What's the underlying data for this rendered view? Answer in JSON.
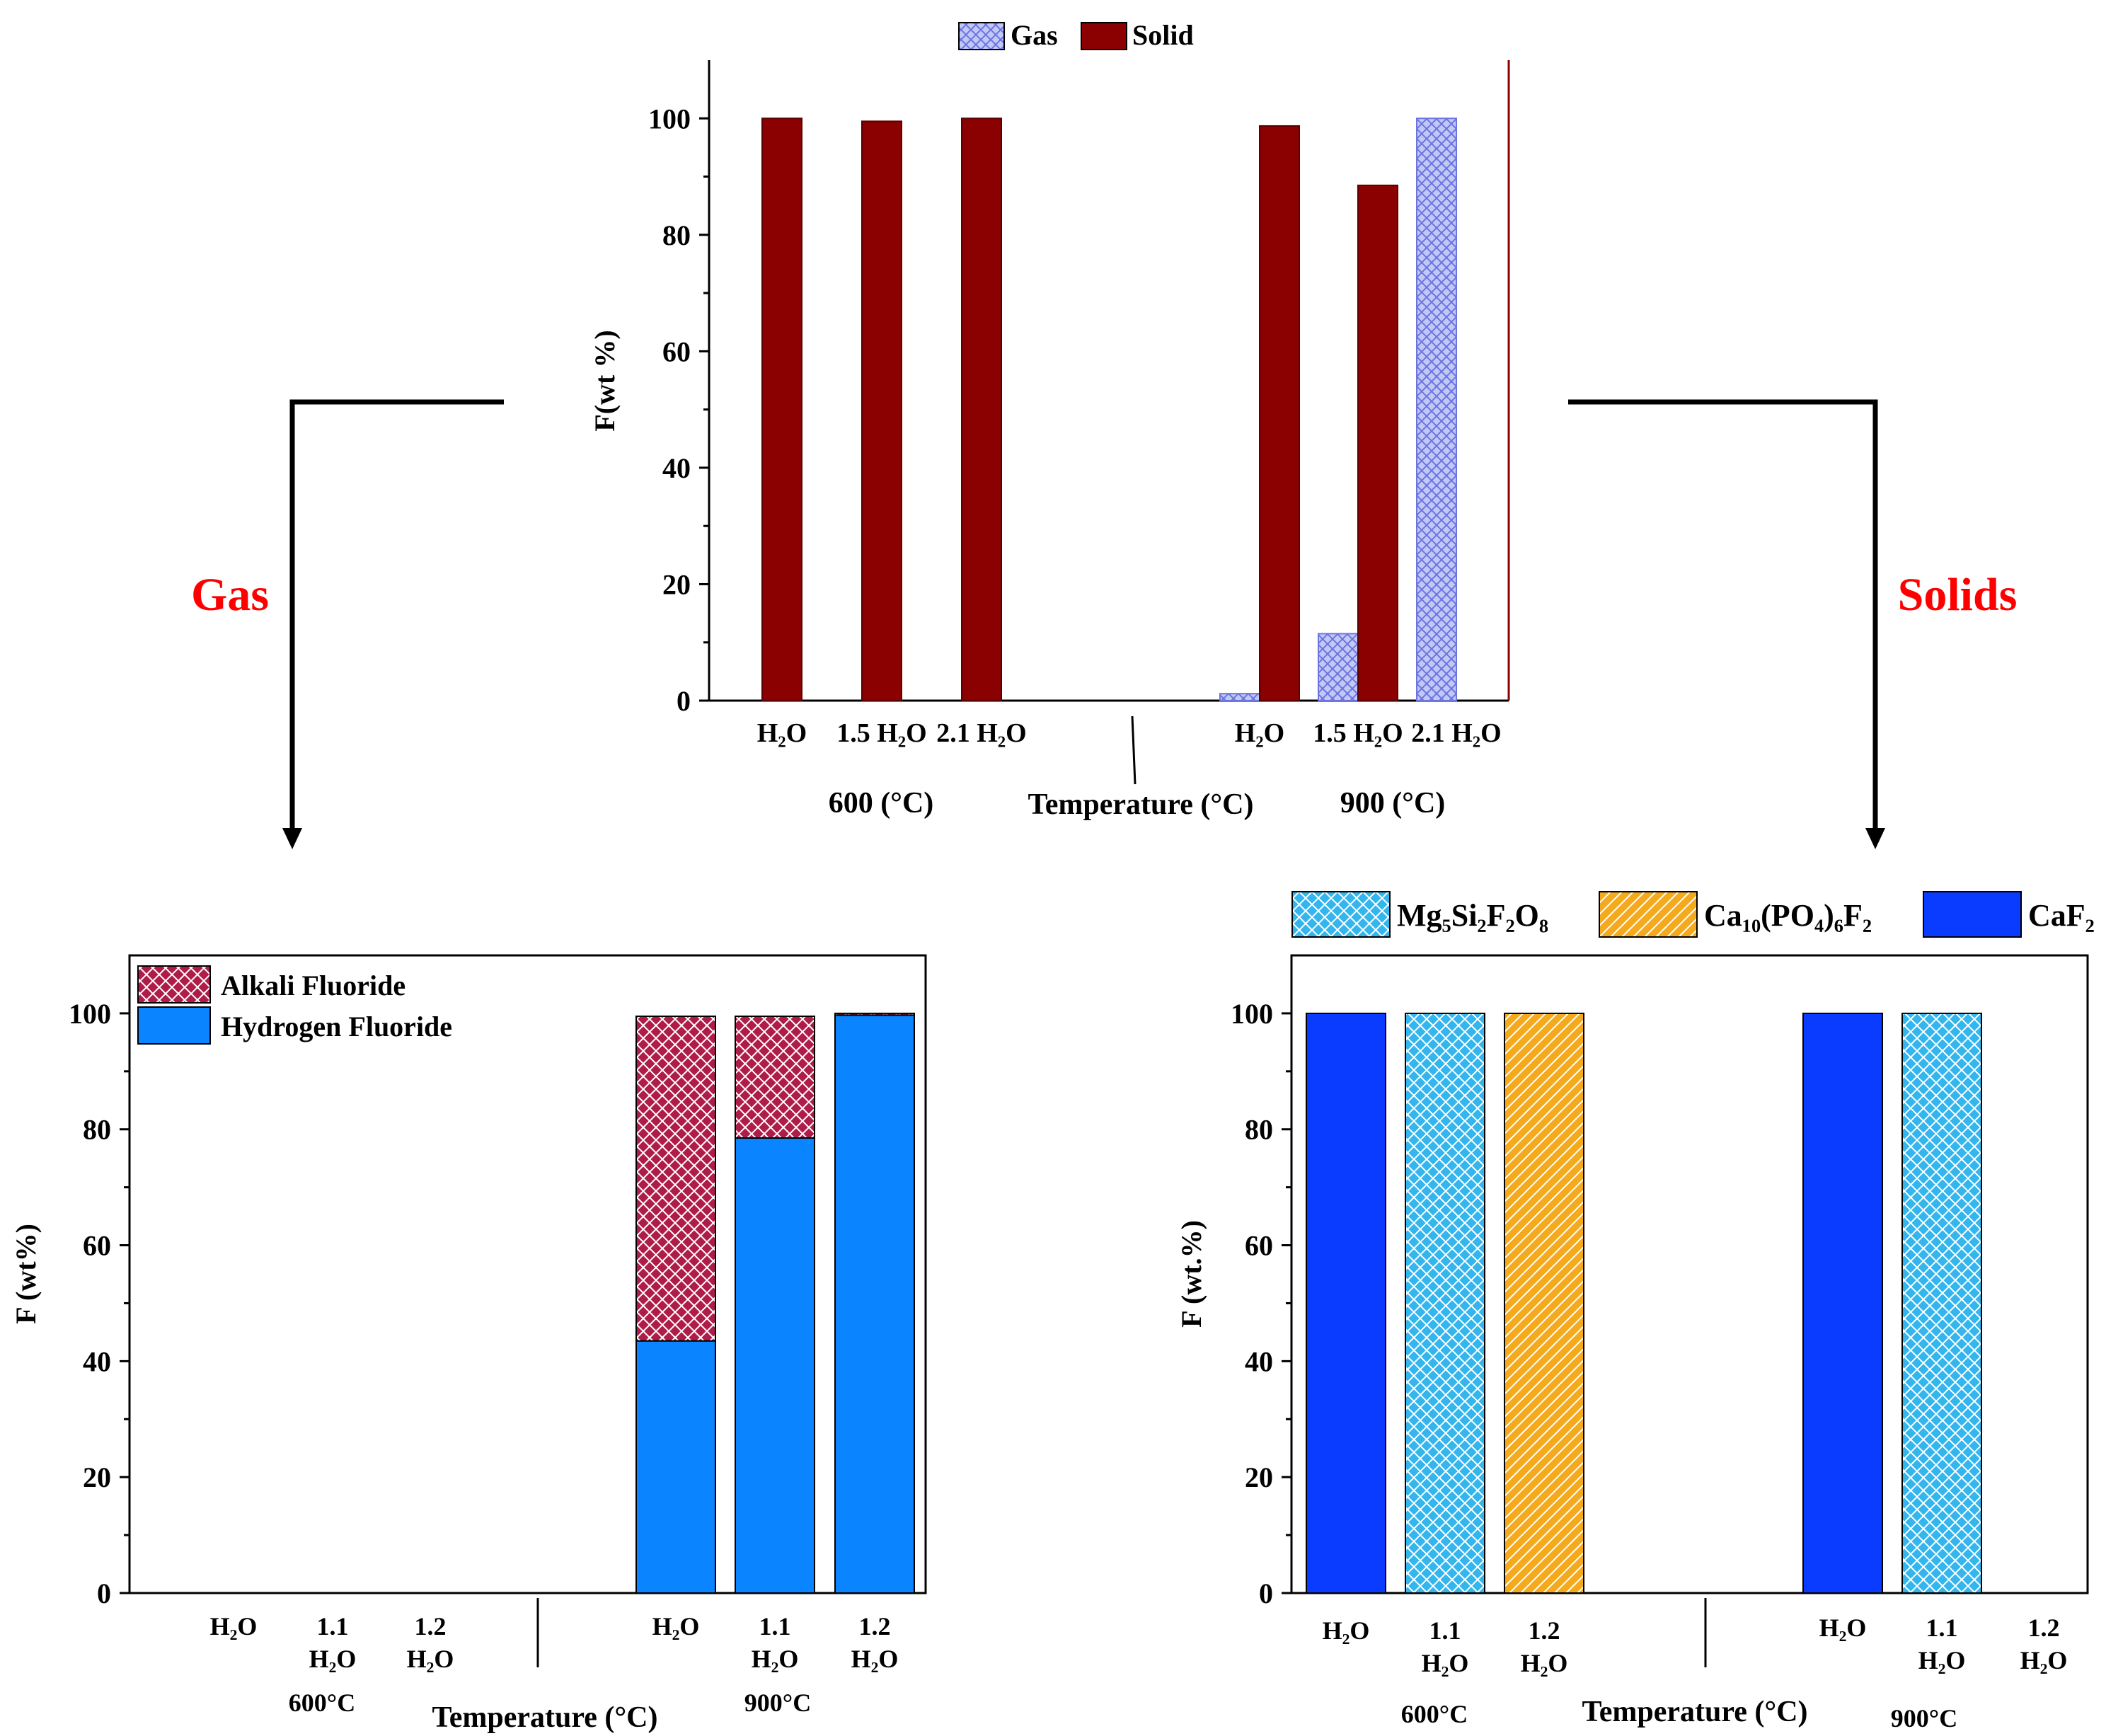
{
  "colors": {
    "gas": "#8c92e8",
    "solid": "#8b0000",
    "alkali": "#b01c4a",
    "hydrogen": "#0a84ff",
    "mg": "#33b5ee",
    "ca": "#f4aa1c",
    "caf2": "#0a3cff",
    "accent_red": "#ff0000"
  },
  "labels": {
    "gas_arrow": "Gas",
    "solids_arrow": "Solids"
  },
  "chart_data": [
    {
      "id": "top",
      "type": "bar",
      "ylabel": "F(wt %)",
      "xlabel": "Temperature (°C)",
      "ylim": [
        0,
        110
      ],
      "yticks": [
        0,
        20,
        40,
        60,
        80,
        100
      ],
      "groups": [
        "600 (°C)",
        "900 (°C)"
      ],
      "categories": [
        "H₂O",
        "1.5 H₂O",
        "2.1 H₂O",
        "H₂O",
        "1.5 H₂O",
        "2.1 H₂O"
      ],
      "legend": [
        "Gas",
        "Solid"
      ],
      "series": [
        {
          "name": "Gas",
          "values": [
            0,
            0,
            0,
            1.2,
            11.5,
            100
          ]
        },
        {
          "name": "Solid",
          "values": [
            100,
            99.5,
            100,
            98.7,
            88.5,
            0
          ]
        }
      ]
    },
    {
      "id": "gas",
      "type": "bar",
      "stacked": true,
      "ylabel": "F (wt%)",
      "xlabel": "Temperature (°C)",
      "ylim": [
        0,
        110
      ],
      "yticks": [
        0,
        20,
        40,
        60,
        80,
        100
      ],
      "groups": [
        "600°C",
        "900°C"
      ],
      "categories": [
        [
          "H₂O"
        ],
        [
          "1.1",
          "H₂O"
        ],
        [
          "1.2",
          "H₂O"
        ],
        [
          "H₂O"
        ],
        [
          "1.1",
          "H₂O"
        ],
        [
          "1.2",
          "H₂O"
        ]
      ],
      "legend": [
        "Alkali Fluoride",
        "Hydrogen Fluoride"
      ],
      "series": [
        {
          "name": "Hydrogen Fluoride",
          "values": [
            0,
            0,
            0,
            43.5,
            78.5,
            99.7
          ]
        },
        {
          "name": "Alkali Fluoride",
          "values": [
            0,
            0,
            0,
            56,
            21,
            0.3
          ]
        }
      ]
    },
    {
      "id": "solids",
      "type": "bar",
      "ylabel": "F (wt.%)",
      "xlabel": "Temperature (°C)",
      "ylim": [
        0,
        110
      ],
      "yticks": [
        0,
        20,
        40,
        60,
        80,
        100
      ],
      "groups": [
        "600°C",
        "900°C"
      ],
      "categories": [
        [
          "H₂O"
        ],
        [
          "1.1",
          "H₂O"
        ],
        [
          "1.2",
          "H₂O"
        ],
        [
          "H₂O"
        ],
        [
          "1.1",
          "H₂O"
        ],
        [
          "1.2",
          "H₂O"
        ]
      ],
      "legend": [
        "Mg₅Si₂F₂O₈",
        "Ca₁₀(PO₄)₆F₂",
        "CaF₂"
      ],
      "bars": [
        {
          "category_index": 0,
          "compound": "CaF₂",
          "value": 100
        },
        {
          "category_index": 1,
          "compound": "Mg₅Si₂F₂O₈",
          "value": 100
        },
        {
          "category_index": 2,
          "compound": "Ca₁₀(PO₄)₆F₂",
          "value": 100
        },
        {
          "category_index": 3,
          "compound": "CaF₂",
          "value": 100
        },
        {
          "category_index": 4,
          "compound": "Mg₅Si₂F₂O₈",
          "value": 100
        }
      ]
    }
  ]
}
